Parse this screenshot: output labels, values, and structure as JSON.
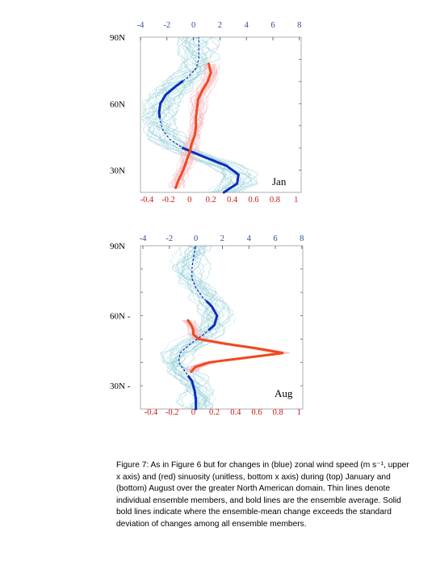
{
  "colors": {
    "blue": "#0a2fb8",
    "blue_light": "#9fd3dc",
    "red": "#ef4a1e",
    "red_light": "#f4b7bf",
    "top_axis": "#2b4f8f",
    "bottom_axis": "#cc1616",
    "frame": "#999999"
  },
  "caption": "Figure 7: As in Figure 6 but for changes in (blue) zonal wind speed (m s⁻¹, upper x axis) and (red) sinuosity (unitless, bottom x axis) during (top) January and (bottom) August over the greater North American domain.  Thin lines denote individual ensemble members, and bold lines are the ensemble average.  Solid bold lines indicate where the ensemble-mean change exceeds the standard deviation of changes among all ensemble members.",
  "chart_data": [
    {
      "type": "line",
      "panel_label": "Jan",
      "top_axis": {
        "ticks": [
          -4,
          -2,
          0,
          2,
          4,
          6,
          8
        ],
        "range": [
          -4,
          8
        ]
      },
      "bottom_axis": {
        "ticks": [
          "-0.4",
          "-0.2",
          "0",
          "0.2",
          "0.4",
          "0.6",
          "0.8",
          "1"
        ],
        "range": [
          -0.4,
          1
        ]
      },
      "y_ticks": [
        {
          "label": "90N",
          "lat": 90
        },
        {
          "label": "60N",
          "lat": 60
        },
        {
          "label": "30N",
          "lat": 30
        }
      ],
      "ylim": [
        20,
        90
      ],
      "series": [
        {
          "color": "blue",
          "axis": "top",
          "lat": [
            20,
            24,
            28,
            32,
            36,
            40,
            44,
            48,
            52,
            56,
            60,
            64,
            68,
            72,
            76,
            80,
            84,
            88,
            90
          ],
          "values": [
            2.3,
            3.3,
            3.4,
            2.5,
            0.8,
            -0.8,
            -1.8,
            -2.3,
            -2.5,
            -2.6,
            -2.5,
            -2.1,
            -1.3,
            -0.4,
            0.2,
            0.4,
            0.4,
            0.4,
            0.4
          ],
          "solid": [
            [
              20,
              40
            ],
            [
              54,
              70
            ]
          ]
        },
        {
          "color": "red",
          "axis": "bottom",
          "lat": [
            22,
            26,
            30,
            34,
            38,
            42,
            46,
            50,
            54,
            58,
            62,
            66,
            70,
            74,
            78
          ],
          "values": [
            -0.13,
            -0.1,
            -0.06,
            -0.03,
            0.0,
            0.02,
            0.05,
            0.06,
            0.06,
            0.07,
            0.08,
            0.12,
            0.17,
            0.2,
            0.18
          ],
          "solid": [
            [
              22,
              78
            ]
          ]
        }
      ]
    },
    {
      "type": "line",
      "panel_label": "Aug",
      "top_axis": {
        "ticks": [
          -4,
          -2,
          0,
          2,
          4,
          6,
          8
        ],
        "range": [
          -4,
          8
        ]
      },
      "bottom_axis": {
        "ticks": [
          "-0.4",
          "-0.2",
          "0",
          "0.2",
          "0.4",
          "0.6",
          "0.8",
          "1"
        ],
        "range": [
          -0.4,
          1
        ]
      },
      "y_ticks": [
        {
          "label": "90N",
          "lat": 90
        },
        {
          "label": "60N -",
          "lat": 60
        },
        {
          "label": "30N -",
          "lat": 30
        }
      ],
      "ylim": [
        20,
        90
      ],
      "series": [
        {
          "color": "blue",
          "axis": "top",
          "lat": [
            20,
            24,
            28,
            32,
            36,
            40,
            44,
            48,
            52,
            56,
            60,
            64,
            68,
            72,
            76,
            80,
            84,
            88,
            90
          ],
          "values": [
            0.0,
            0.0,
            -0.1,
            -0.3,
            -0.8,
            -1.3,
            -1.2,
            -0.4,
            0.6,
            1.4,
            1.6,
            1.2,
            0.5,
            0.0,
            -0.3,
            -0.3,
            -0.2,
            -0.1,
            -0.1
          ],
          "solid": [
            [
              20,
              34
            ],
            [
              54,
              66
            ]
          ]
        },
        {
          "color": "red",
          "axis": "bottom",
          "lat": [
            58,
            56,
            54,
            52,
            50,
            48,
            46,
            44,
            42,
            40,
            38,
            36
          ],
          "values": [
            -0.05,
            -0.02,
            0.0,
            0.0,
            0.05,
            0.3,
            0.6,
            0.85,
            0.5,
            0.15,
            0.02,
            -0.02
          ],
          "solid": [
            [
              36,
              58
            ]
          ]
        }
      ]
    }
  ]
}
